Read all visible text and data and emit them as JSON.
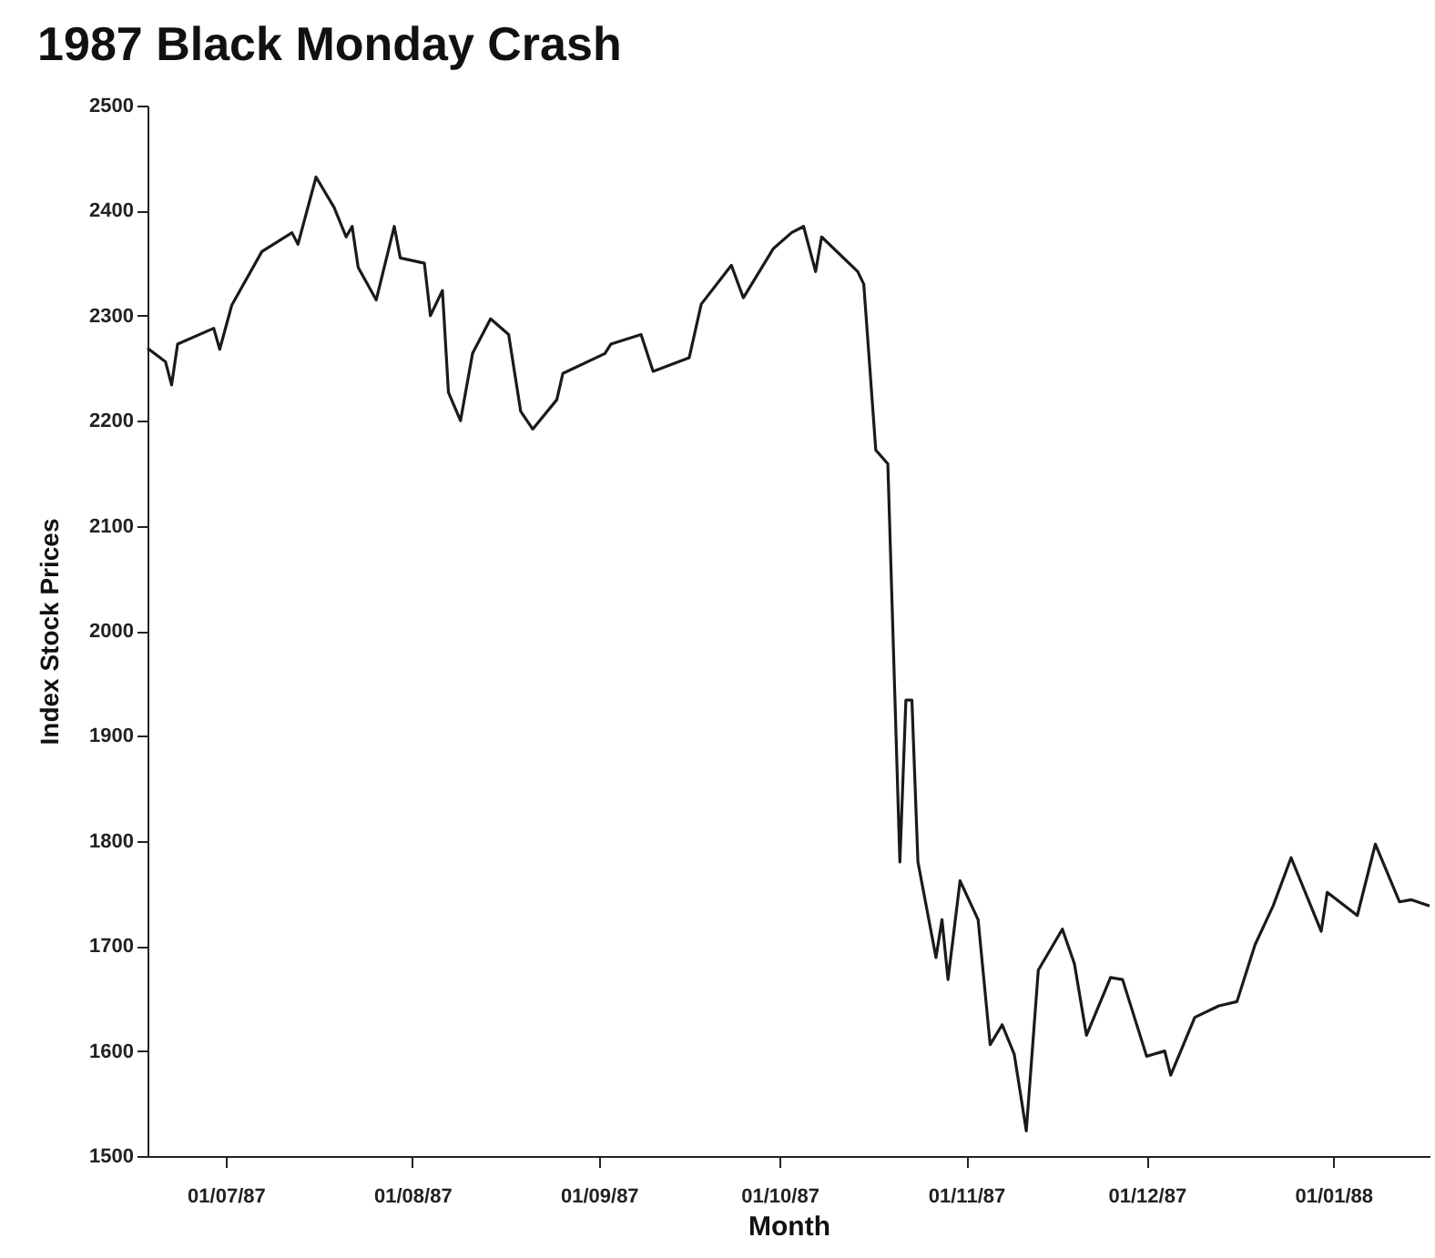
{
  "chart_data": {
    "type": "line",
    "title": "1987 Black Monday Crash",
    "xlabel": "Month",
    "ylabel": "Index Stock Prices",
    "x": [
      "1987-06-18",
      "1987-06-21",
      "1987-06-22",
      "1987-06-23",
      "1987-06-29",
      "1987-06-30",
      "1987-07-02",
      "1987-07-07",
      "1987-07-12",
      "1987-07-13",
      "1987-07-16",
      "1987-07-19",
      "1987-07-21",
      "1987-07-22",
      "1987-07-23",
      "1987-07-26",
      "1987-07-29",
      "1987-07-30",
      "1987-08-03",
      "1987-08-04",
      "1987-08-06",
      "1987-08-07",
      "1987-08-09",
      "1987-08-11",
      "1987-08-14",
      "1987-08-17",
      "1987-08-19",
      "1987-08-21",
      "1987-08-25",
      "1987-08-26",
      "1987-09-02",
      "1987-09-03",
      "1987-09-08",
      "1987-09-10",
      "1987-09-16",
      "1987-09-18",
      "1987-09-23",
      "1987-09-25",
      "1987-09-30",
      "1987-10-03",
      "1987-10-05",
      "1987-10-07",
      "1987-10-08",
      "1987-10-14",
      "1987-10-15",
      "1987-10-17",
      "1987-10-19",
      "1987-10-21",
      "1987-10-22",
      "1987-10-23",
      "1987-10-24",
      "1987-10-27",
      "1987-10-28",
      "1987-10-29",
      "1987-10-31",
      "1987-11-03",
      "1987-11-05",
      "1987-11-07",
      "1987-11-09",
      "1987-11-11",
      "1987-11-13",
      "1987-11-17",
      "1987-11-19",
      "1987-11-21",
      "1987-11-25",
      "1987-11-27",
      "1987-12-01",
      "1987-12-04",
      "1987-12-05",
      "1987-12-09",
      "1987-12-13",
      "1987-12-16",
      "1987-12-19",
      "1987-12-22",
      "1987-12-25",
      "1987-12-30",
      "1987-12-31",
      "1988-01-05",
      "1988-01-08",
      "1988-01-12",
      "1988-01-14",
      "1988-01-17"
    ],
    "series": [
      {
        "color": "#1a1a1a",
        "values": [
          2269,
          2256,
          2234,
          2273,
          2288,
          2268,
          2310,
          2361,
          2379,
          2368,
          2432,
          2403,
          2375,
          2385,
          2346,
          2315,
          2385,
          2355,
          2350,
          2300,
          2324,
          2227,
          2200,
          2264,
          2297,
          2282,
          2209,
          2192,
          2220,
          2245,
          2264,
          2273,
          2282,
          2247,
          2260,
          2311,
          2348,
          2317,
          2364,
          2379,
          2385,
          2342,
          2375,
          2342,
          2330,
          2172,
          2159,
          1780,
          1934,
          1934,
          1780,
          1689,
          1725,
          1668,
          1762,
          1725,
          1606,
          1625,
          1597,
          1524,
          1677,
          1716,
          1683,
          1615,
          1670,
          1668,
          1595,
          1600,
          1577,
          1632,
          1643,
          1647,
          1701,
          1738,
          1784,
          1714,
          1751,
          1729,
          1797,
          1742,
          1744,
          1738
        ]
      }
    ],
    "xlim": [
      "1987-06-18",
      "1988-01-17"
    ],
    "xticks": [
      {
        "value": "1987-07-01",
        "label": "01/07/87"
      },
      {
        "value": "1987-08-01",
        "label": "01/08/87"
      },
      {
        "value": "1987-09-01",
        "label": "01/09/87"
      },
      {
        "value": "1987-10-01",
        "label": "01/10/87"
      },
      {
        "value": "1987-11-01",
        "label": "01/11/87"
      },
      {
        "value": "1987-12-01",
        "label": "01/12/87"
      },
      {
        "value": "1988-01-01",
        "label": "01/01/88"
      }
    ],
    "ylim": [
      1500,
      2500
    ],
    "yticks": [
      1500,
      1600,
      1700,
      1800,
      1900,
      2000,
      2100,
      2200,
      2300,
      2400,
      2500
    ],
    "grid": false,
    "legend": false,
    "marker": "none",
    "line_style": "solid"
  }
}
